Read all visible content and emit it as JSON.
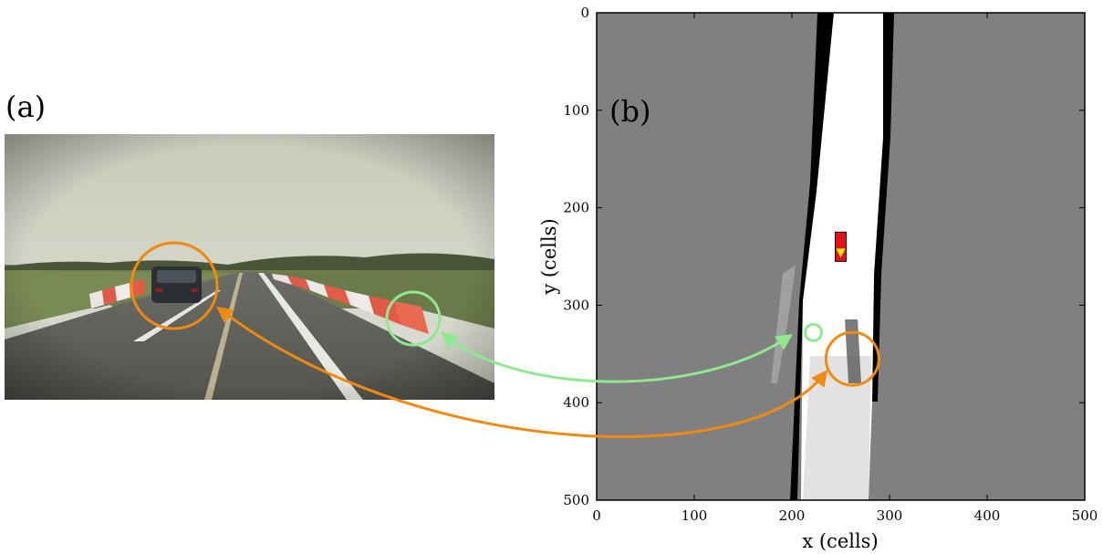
{
  "panels": {
    "a": {
      "label": "(a)"
    },
    "b": {
      "label": "(b)"
    }
  },
  "chart_data": {
    "type": "heatmap",
    "title": "",
    "xlabel": "x (cells)",
    "ylabel": "y (cells)",
    "xlim": [
      0,
      500
    ],
    "ylim": [
      0,
      500
    ],
    "y_inverted": true,
    "x_ticks": [
      "0",
      "100",
      "200",
      "300",
      "400",
      "500"
    ],
    "y_ticks": [
      "0",
      "100",
      "200",
      "300",
      "400",
      "500"
    ],
    "vehicle_marker": {
      "x": 250,
      "y": 240,
      "color": "#e8101a",
      "arrow_color": "#f5e800"
    },
    "highlights": [
      {
        "name": "barrier",
        "color": "#90e890",
        "x": 222,
        "y": 328
      },
      {
        "name": "car",
        "color": "#f08a10",
        "x": 262,
        "y": 355
      }
    ]
  },
  "colors": {
    "unknown": "#808080",
    "free": "#ffffff",
    "occupied": "#000000",
    "green": "#90e890",
    "orange": "#f08a10"
  }
}
